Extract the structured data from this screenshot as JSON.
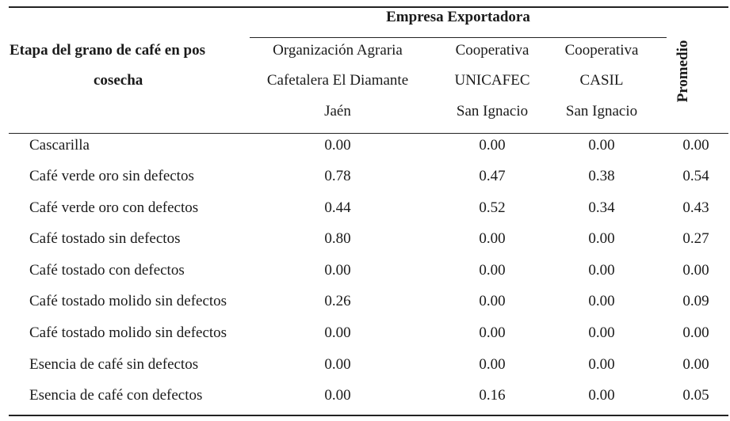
{
  "table": {
    "group_header": "Empresa Exportadora",
    "stage_header": [
      "Etapa del grano de café en pos",
      "cosecha"
    ],
    "columns": [
      [
        "Organización Agraria",
        "Cafetalera El Diamante",
        "Jaén"
      ],
      [
        "Cooperativa",
        "UNICAFEC",
        "San Ignacio"
      ],
      [
        "Cooperativa",
        "CASIL",
        "San Ignacio"
      ]
    ],
    "average_header": "Promedio",
    "rows": [
      {
        "label": "Cascarilla",
        "values": [
          "0.00",
          "0.00",
          "0.00",
          "0.00"
        ]
      },
      {
        "label": "Café verde oro sin defectos",
        "values": [
          "0.78",
          "0.47",
          "0.38",
          "0.54"
        ]
      },
      {
        "label": "Café verde oro con defectos",
        "values": [
          "0.44",
          "0.52",
          "0.34",
          "0.43"
        ]
      },
      {
        "label": "Café tostado sin defectos",
        "values": [
          "0.80",
          "0.00",
          "0.00",
          "0.27"
        ]
      },
      {
        "label": "Café tostado con defectos",
        "values": [
          "0.00",
          "0.00",
          "0.00",
          "0.00"
        ]
      },
      {
        "label": "Café tostado molido sin defectos",
        "values": [
          "0.26",
          "0.00",
          "0.00",
          "0.09"
        ]
      },
      {
        "label": "Café tostado molido sin defectos",
        "values": [
          "0.00",
          "0.00",
          "0.00",
          "0.00"
        ]
      },
      {
        "label": "Esencia de café sin defectos",
        "values": [
          "0.00",
          "0.00",
          "0.00",
          "0.00"
        ]
      },
      {
        "label": "Esencia de café con defectos",
        "values": [
          "0.00",
          "0.16",
          "0.00",
          "0.05"
        ]
      }
    ]
  }
}
